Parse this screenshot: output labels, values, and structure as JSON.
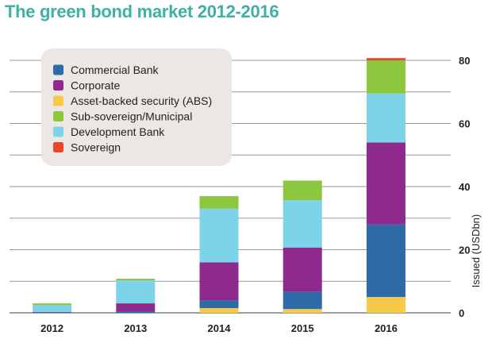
{
  "chart_data": {
    "type": "bar",
    "stacked": true,
    "title": "The green bond market 2012-2016",
    "ylabel": "Issued (USDbn)",
    "xlabel": "",
    "ylim": [
      0,
      80
    ],
    "yticks": [
      0,
      20,
      40,
      60,
      80
    ],
    "y_axis_side": "right",
    "grid": true,
    "legend_placement": "top-left",
    "categories": [
      "2012",
      "2013",
      "2014",
      "2015",
      "2016"
    ],
    "series": [
      {
        "name": "Commercial Bank",
        "color": "#2f6aa8",
        "values": [
          0.2,
          0.5,
          2.5,
          5.5,
          23
        ]
      },
      {
        "name": "Corporate",
        "color": "#8e2a8e",
        "values": [
          0.1,
          2.5,
          12,
          14,
          26
        ]
      },
      {
        "name": "Asset-backed security (ABS)",
        "color": "#f7c948",
        "values": [
          0,
          0,
          1.5,
          1.2,
          5
        ]
      },
      {
        "name": "Sub-sovereign/Municipal",
        "color": "#8dc63f",
        "values": [
          0.5,
          0.5,
          4,
          6.2,
          10.5
        ]
      },
      {
        "name": "Development Bank",
        "color": "#7dd3e8",
        "values": [
          2.2,
          7.3,
          17,
          15,
          15.5
        ]
      },
      {
        "name": "Sovereign",
        "color": "#e8452c",
        "values": [
          0,
          0,
          0,
          0,
          0.7
        ]
      }
    ],
    "stack_order": [
      2,
      0,
      1,
      4,
      3,
      5
    ]
  }
}
